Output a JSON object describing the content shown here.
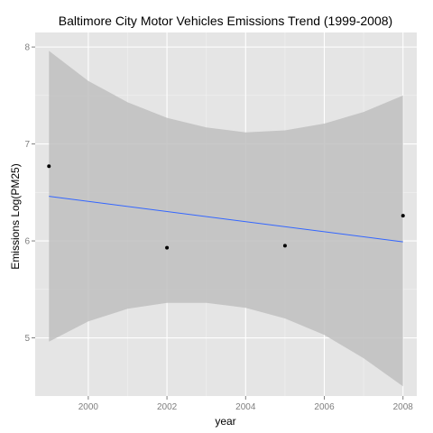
{
  "chart_data": {
    "type": "scatter",
    "title": "Baltimore City Motor Vehicles Emissions Trend (1999-2008)",
    "xlabel": "year",
    "ylabel": "Emissions Log(PM25)",
    "xlim": [
      1998.65,
      2008.35
    ],
    "ylim": [
      4.4,
      8.15
    ],
    "x_ticks": [
      2000,
      2002,
      2004,
      2006,
      2008
    ],
    "x_tick_labels": [
      "2000",
      "2002",
      "2004",
      "2006",
      "2008"
    ],
    "y_ticks": [
      5,
      6,
      7,
      8
    ],
    "y_tick_labels": [
      "5",
      "6",
      "7",
      "8"
    ],
    "grid": true,
    "points": [
      {
        "x": 1999,
        "y": 6.77
      },
      {
        "x": 2002,
        "y": 5.93
      },
      {
        "x": 2005,
        "y": 5.95
      },
      {
        "x": 2008,
        "y": 6.26
      }
    ],
    "trend": {
      "method": "linear",
      "x": [
        1999,
        2008
      ],
      "y": [
        6.46,
        5.99
      ],
      "ci_x": [
        1999,
        2000,
        2001,
        2002,
        2003,
        2004,
        2005,
        2006,
        2007,
        2008
      ],
      "ci_upper": [
        7.96,
        7.65,
        7.43,
        7.27,
        7.17,
        7.12,
        7.14,
        7.21,
        7.33,
        7.5
      ],
      "ci_lower": [
        4.96,
        5.17,
        5.3,
        5.36,
        5.36,
        5.31,
        5.2,
        5.03,
        4.79,
        4.5
      ]
    },
    "colors": {
      "panel": "#e5e5e5",
      "grid_major": "#ffffff",
      "grid_minor": "#f2f2f2",
      "ribbon": "#bfbfbf",
      "line": "#3366ff",
      "point": "#000000"
    }
  }
}
